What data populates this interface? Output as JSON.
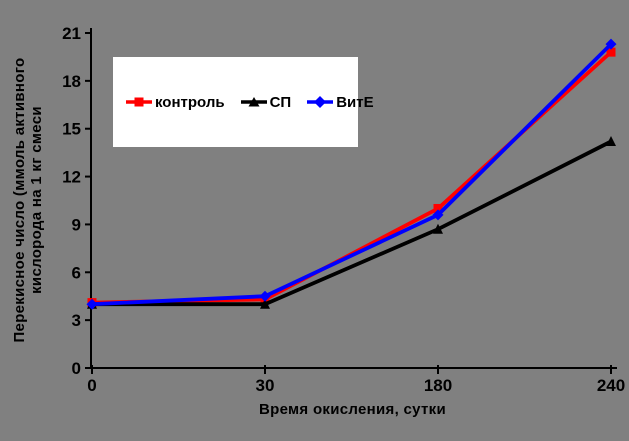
{
  "chart_data": {
    "type": "line",
    "title": "",
    "xlabel": "Время окисления, сутки",
    "ylabel": "Перекисное число (ммоль активного кислорода на 1 кг смеси",
    "ylabel_lines": [
      "Перекисное число (ммоль активного",
      "кислорода на 1 кг смеси"
    ],
    "categories": [
      "0",
      "30",
      "180",
      "240"
    ],
    "x_values": [
      0,
      30,
      180,
      240
    ],
    "ylim": [
      0,
      21
    ],
    "yticks": [
      0,
      3,
      6,
      9,
      12,
      15,
      18,
      21
    ],
    "grid": false,
    "legend_position": "inside-top-left",
    "series": [
      {
        "name": "контроль",
        "color": "#FF0000",
        "marker": "square",
        "values": [
          4.1,
          4.3,
          10.0,
          19.8
        ]
      },
      {
        "name": "СП",
        "color": "#000000",
        "marker": "triangle",
        "values": [
          4.0,
          4.0,
          8.7,
          14.2
        ]
      },
      {
        "name": "ВитЕ",
        "color": "#0000FF",
        "marker": "diamond",
        "values": [
          4.0,
          4.5,
          9.6,
          20.3
        ]
      }
    ],
    "colors": {
      "background": "#808080",
      "legend_background": "#FFFFFF",
      "axis": "#000000",
      "text": "#000000"
    }
  }
}
